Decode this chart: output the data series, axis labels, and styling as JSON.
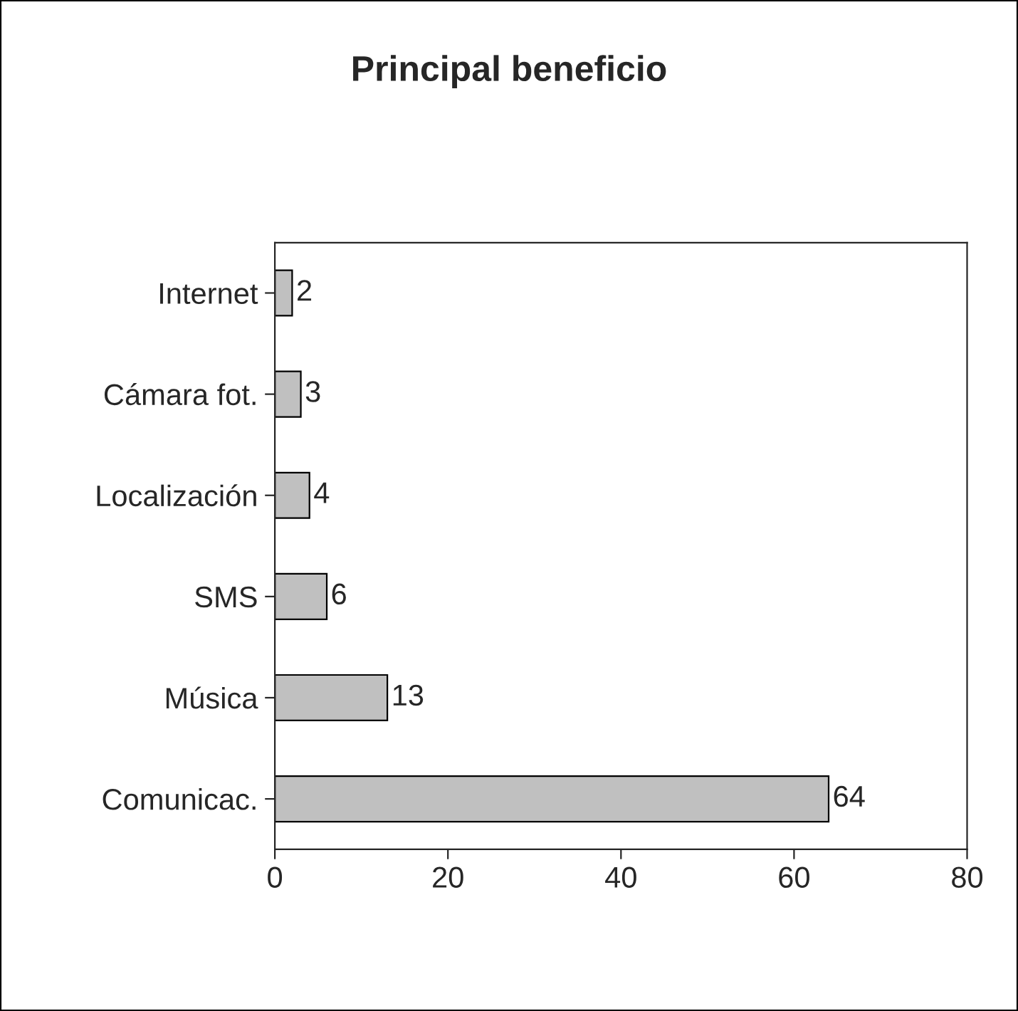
{
  "chart_data": {
    "type": "bar",
    "orientation": "horizontal",
    "title": "Principal beneficio",
    "categories": [
      "Internet",
      "Cámara fot.",
      "Localización",
      "SMS",
      "Música",
      "Comunicac."
    ],
    "values": [
      2,
      3,
      4,
      6,
      13,
      64
    ],
    "color": "#c0c0c0",
    "xlim": [
      0,
      80
    ],
    "xticks": [
      0,
      20,
      40,
      60,
      80
    ],
    "data_labels": true,
    "grid": false,
    "legend": false
  }
}
